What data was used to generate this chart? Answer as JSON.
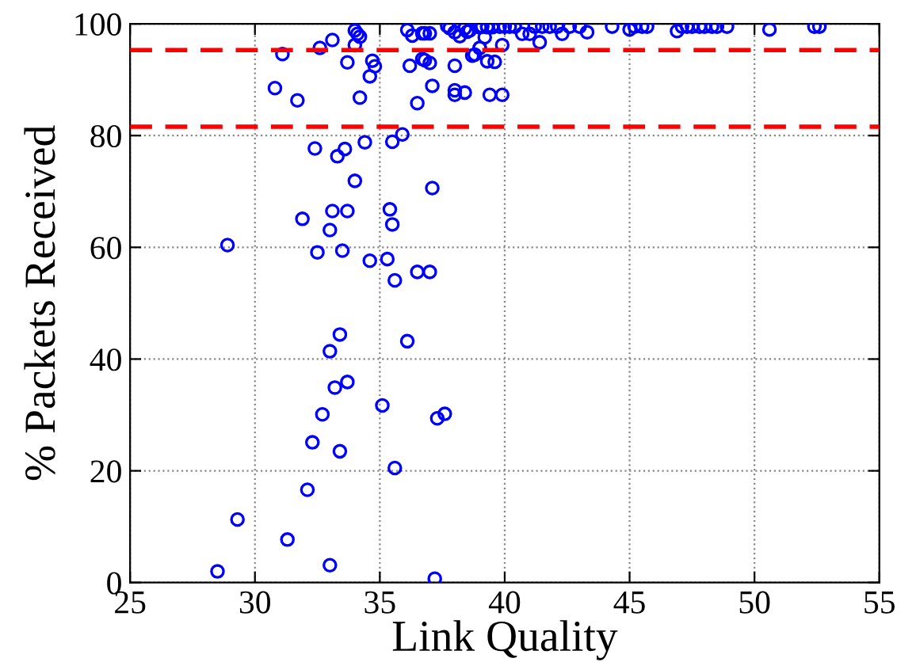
{
  "chart_data": {
    "type": "scatter",
    "xlabel": "Link Quality",
    "ylabel": "% Packets Received",
    "xlim": [
      25,
      55
    ],
    "ylim": [
      0,
      100
    ],
    "xticks": [
      25,
      30,
      35,
      40,
      45,
      50,
      55
    ],
    "yticks": [
      0,
      20,
      40,
      60,
      80,
      100
    ],
    "grid": true,
    "marker": "circle",
    "series": [
      {
        "color": "#0000ff",
        "x": [
          28.9,
          30.8,
          31.7,
          31.1,
          32.6,
          33.1,
          34.0,
          34.1,
          34.2,
          34.0,
          33.7,
          34.7,
          34.8,
          34.6,
          34.2,
          32.4,
          33.3,
          33.6,
          34.4,
          35.5,
          35.9,
          34.0,
          37.1,
          31.9,
          33.1,
          33.7,
          33.0,
          32.5,
          33.5,
          34.6,
          35.3,
          35.4,
          35.5,
          35.6,
          36.5,
          37.0,
          36.1,
          36.3,
          36.7,
          36.8,
          37.0,
          36.2,
          36.7,
          36.8,
          37.0,
          36.5,
          37.1,
          38.0,
          38.0,
          38.4,
          38.0,
          37.7,
          37.8,
          38.0,
          38.2,
          38.4,
          38.6,
          39.0,
          39.3,
          39.5,
          38.8,
          39.0,
          39.3,
          39.4,
          33.4,
          33.0,
          36.1,
          33.7,
          33.2,
          32.7,
          35.1,
          37.3,
          37.6,
          32.3,
          33.4,
          35.6,
          32.1,
          29.3,
          31.3,
          28.5,
          33.0,
          37.2,
          38.5,
          38.7,
          39.0,
          39.2,
          39.6,
          39.9,
          39.9,
          39.1,
          39.3,
          39.5,
          39.8,
          40.0,
          40.2,
          40.4,
          40.7,
          41.0,
          41.2,
          41.5,
          41.8,
          42.1,
          42.3,
          42.6,
          43.0,
          43.3,
          44.3,
          45.0,
          45.2,
          45.5,
          45.7,
          46.9,
          47.1,
          47.3,
          47.5,
          47.8,
          48.0,
          48.3,
          48.5,
          48.9,
          50.6,
          52.4,
          52.6,
          41.4
        ],
        "values": [
          60.4,
          88.5,
          86.3,
          94.6,
          95.7,
          97.1,
          98.8,
          98.2,
          97.7,
          96.2,
          93.1,
          93.4,
          92.4,
          90.6,
          86.8,
          77.7,
          76.3,
          77.6,
          78.8,
          78.9,
          80.2,
          71.9,
          70.6,
          65.1,
          66.5,
          66.5,
          63.1,
          59.1,
          59.4,
          57.6,
          57.9,
          66.8,
          64.1,
          54.1,
          55.6,
          55.6,
          98.9,
          97.9,
          98.3,
          98.3,
          98.3,
          92.5,
          93.7,
          93.5,
          93.0,
          85.8,
          88.9,
          88.1,
          87.3,
          87.7,
          92.5,
          99.6,
          99.2,
          98.5,
          97.8,
          99.2,
          98.8,
          99.4,
          99.4,
          99.4,
          94.5,
          95.7,
          93.3,
          87.3,
          44.4,
          41.4,
          43.2,
          35.9,
          34.9,
          30.1,
          31.7,
          29.4,
          30.2,
          25.1,
          23.5,
          20.5,
          16.6,
          11.3,
          7.7,
          2.0,
          3.1,
          0.7,
          98.6,
          94.3,
          95.7,
          97.6,
          93.2,
          87.3,
          96.2,
          99.5,
          99.5,
          99.5,
          99.5,
          99.5,
          99.5,
          99.5,
          98.2,
          98.2,
          99.5,
          99.5,
          99.5,
          99.5,
          98.2,
          99.5,
          99.5,
          98.5,
          99.5,
          99.0,
          99.5,
          99.5,
          99.5,
          98.7,
          99.5,
          99.5,
          99.5,
          99.5,
          99.5,
          99.5,
          99.5,
          99.5,
          99.0,
          99.5,
          99.5,
          96.7
        ]
      }
    ],
    "ref_lines": [
      {
        "axis": "y",
        "value": 95.3,
        "color": "#ff0000",
        "line_style": "dashed"
      },
      {
        "axis": "y",
        "value": 81.6,
        "color": "#ff0000",
        "line_style": "dashed"
      }
    ]
  }
}
